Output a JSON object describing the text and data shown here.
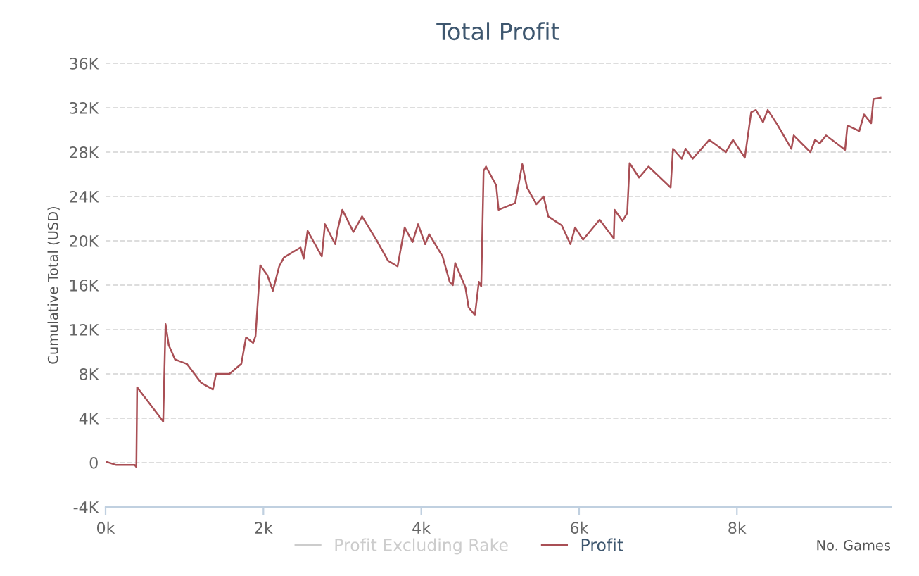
{
  "chart_data": {
    "type": "line",
    "title": "Total Profit",
    "xlabel": "No. Games",
    "ylabel": "Cumulative Total (USD)",
    "xlim": [
      0,
      9950
    ],
    "ylim": [
      -4000,
      36000
    ],
    "xticks": [
      {
        "value": 0,
        "label": "0k"
      },
      {
        "value": 2000,
        "label": "2k"
      },
      {
        "value": 4000,
        "label": "4k"
      },
      {
        "value": 6000,
        "label": "6k"
      },
      {
        "value": 8000,
        "label": "8k"
      }
    ],
    "yticks": [
      {
        "value": -4000,
        "label": "-4K"
      },
      {
        "value": 0,
        "label": "0"
      },
      {
        "value": 4000,
        "label": "4K"
      },
      {
        "value": 8000,
        "label": "8K"
      },
      {
        "value": 12000,
        "label": "12K"
      },
      {
        "value": 16000,
        "label": "16K"
      },
      {
        "value": 20000,
        "label": "20K"
      },
      {
        "value": 24000,
        "label": "24K"
      },
      {
        "value": 28000,
        "label": "28K"
      },
      {
        "value": 32000,
        "label": "32K"
      },
      {
        "value": 36000,
        "label": "36K"
      }
    ],
    "grid": "y",
    "legend": "bottom",
    "marker": "none",
    "line_style": "solid",
    "series": [
      {
        "name": "Profit Excluding Rake",
        "color": "#cccccc"
      },
      {
        "name": "Profit",
        "color": "#a94f55",
        "x": [
          0,
          130,
          370,
          390,
          400,
          700,
          730,
          760,
          800,
          880,
          1030,
          1210,
          1360,
          1400,
          1570,
          1720,
          1780,
          1870,
          1900,
          1960,
          2050,
          2120,
          2200,
          2260,
          2470,
          2510,
          2560,
          2740,
          2780,
          2910,
          2940,
          3000,
          3140,
          3250,
          3430,
          3580,
          3700,
          3790,
          3890,
          3960,
          4050,
          4100,
          4270,
          4360,
          4400,
          4430,
          4560,
          4600,
          4680,
          4730,
          4760,
          4790,
          4820,
          4950,
          4980,
          5190,
          5280,
          5340,
          5460,
          5550,
          5610,
          5780,
          5890,
          5950,
          6050,
          6260,
          6440,
          6450,
          6550,
          6610,
          6640,
          6760,
          6880,
          7160,
          7190,
          7300,
          7350,
          7440,
          7650,
          7860,
          7950,
          8100,
          8180,
          8240,
          8330,
          8390,
          8510,
          8690,
          8720,
          8930,
          8990,
          9050,
          9130,
          9370,
          9400,
          9550,
          9610,
          9700,
          9730,
          9820
        ],
        "values": [
          100,
          -200,
          -200,
          -400,
          6800,
          4000,
          3700,
          12500,
          10600,
          9300,
          8900,
          7200,
          6600,
          8000,
          8000,
          8900,
          11300,
          10800,
          11400,
          17800,
          16900,
          15500,
          17700,
          18500,
          19400,
          18400,
          20900,
          18600,
          21500,
          19700,
          21000,
          22800,
          20800,
          22200,
          20100,
          18200,
          17700,
          21200,
          19900,
          21500,
          19700,
          20600,
          18600,
          16300,
          16000,
          18000,
          15800,
          14000,
          13300,
          16300,
          15900,
          26300,
          26700,
          25000,
          22800,
          23400,
          26900,
          24800,
          23300,
          24000,
          22200,
          21400,
          19700,
          21200,
          20100,
          21900,
          20200,
          22800,
          21800,
          22500,
          27000,
          25700,
          26700,
          24800,
          28300,
          27400,
          28300,
          27400,
          29100,
          28000,
          29100,
          27500,
          31600,
          31800,
          30700,
          31800,
          30500,
          28300,
          29500,
          28000,
          29100,
          28800,
          29500,
          28200,
          30400,
          29900,
          31400,
          30600,
          32800,
          32900
        ]
      }
    ]
  }
}
